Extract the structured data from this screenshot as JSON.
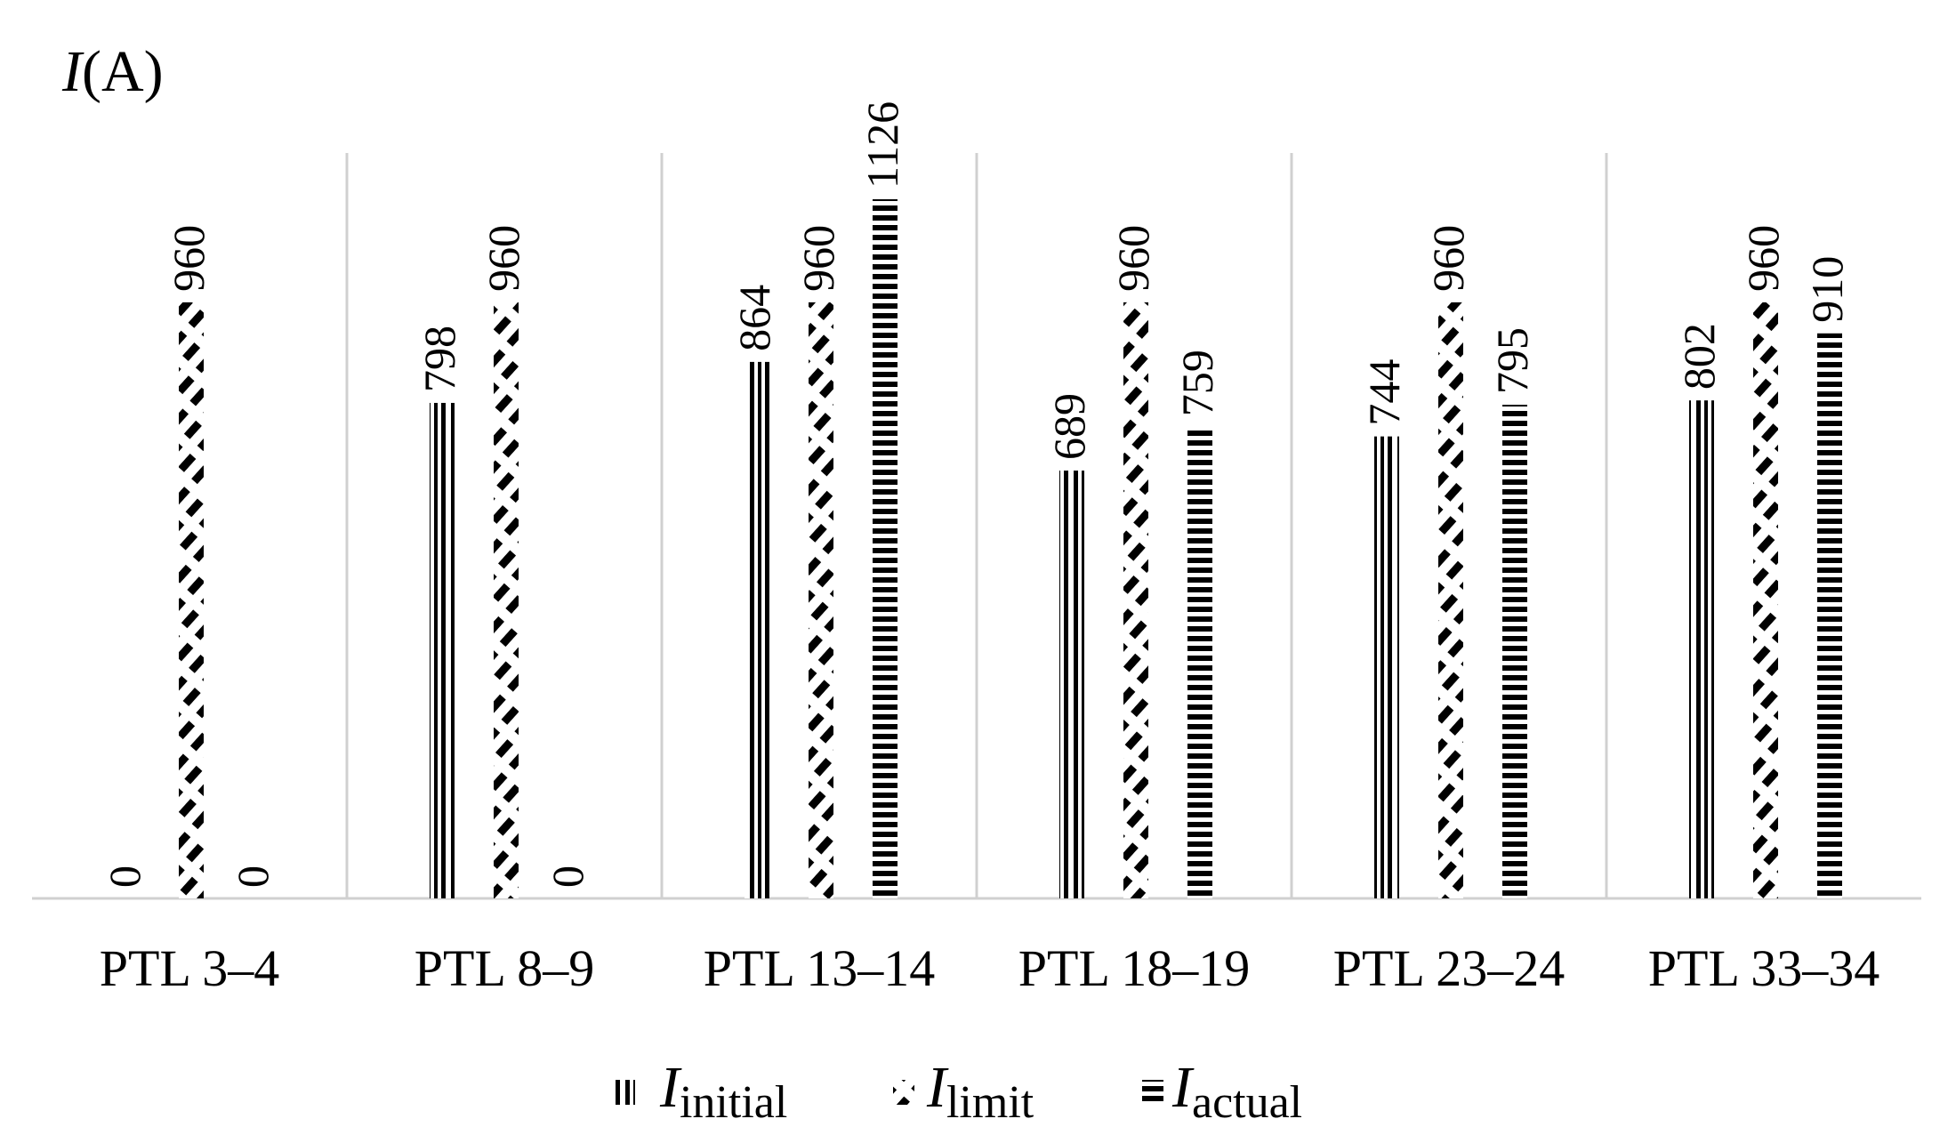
{
  "chart_data": {
    "type": "bar",
    "ylabel_italic": "I",
    "ylabel_unit": "(A)",
    "categories": [
      "PTL 3–4",
      "PTL 8–9",
      "PTL 13–14",
      "PTL 18–19",
      "PTL 23–24",
      "PTL 33–34"
    ],
    "series": [
      {
        "key": "initial",
        "name_main": "I",
        "name_sub": "initial",
        "pattern": "vertical-double-lines",
        "values": [
          0,
          798,
          864,
          689,
          744,
          802
        ]
      },
      {
        "key": "limit",
        "name_main": "I",
        "name_sub": "limit",
        "pattern": "diagonal-dashes",
        "values": [
          960,
          960,
          960,
          960,
          960,
          960
        ]
      },
      {
        "key": "actual",
        "name_main": "I",
        "name_sub": "actual",
        "pattern": "horizontal-dashes",
        "values": [
          0,
          0,
          1126,
          759,
          795,
          910
        ]
      }
    ],
    "data_labels": [
      [
        "0",
        "960",
        "0"
      ],
      [
        "798",
        "960",
        "0"
      ],
      [
        "864",
        "960",
        "1126"
      ],
      [
        "689",
        "960",
        "759"
      ],
      [
        "744",
        "960",
        "795"
      ],
      [
        "802",
        "960",
        "910"
      ]
    ],
    "ylim": [
      0,
      1126
    ],
    "grid": "vertical category separators",
    "legend_position": "bottom",
    "colors": {
      "bars": "#000000",
      "axis": "#d0d0d0",
      "background": "#ffffff"
    }
  }
}
